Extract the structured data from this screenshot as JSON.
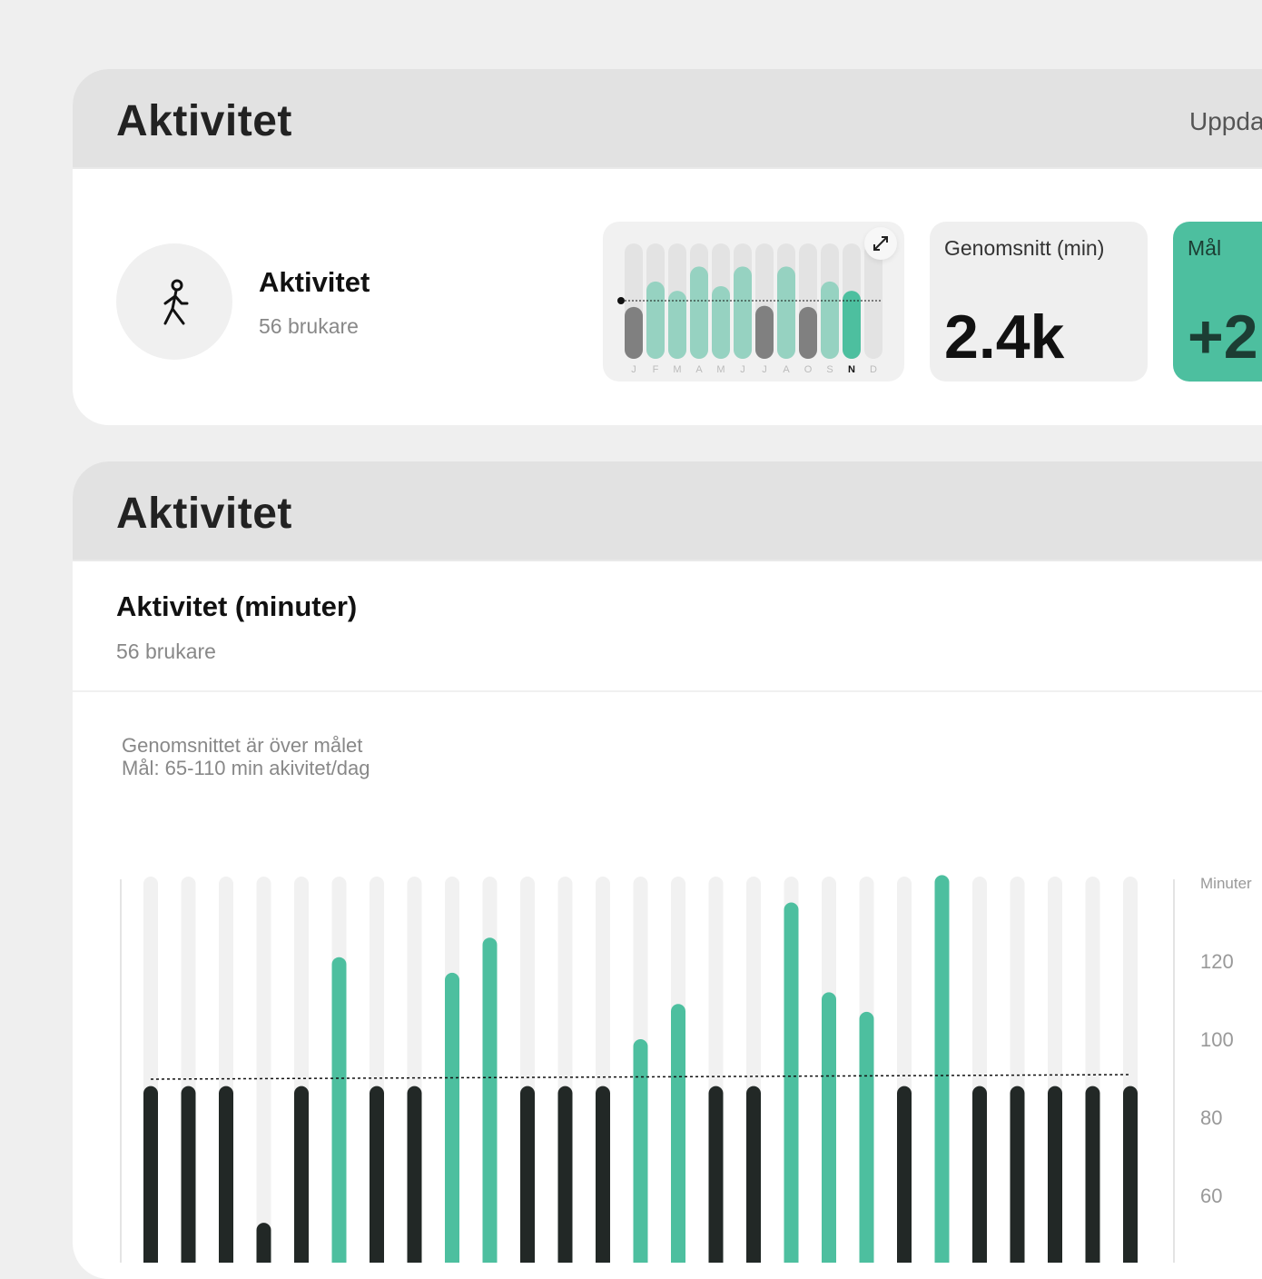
{
  "summary_card": {
    "title": "Aktivitet",
    "updated_label": "Uppda",
    "name": "Aktivitet",
    "users": "56 brukare",
    "icon": "walking-person-icon",
    "mini_chart": {
      "months": [
        "J",
        "F",
        "M",
        "A",
        "M",
        "J",
        "J",
        "A",
        "O",
        "S",
        "N",
        "D"
      ],
      "active_month": "N",
      "fill_fraction": [
        0.45,
        0.67,
        0.59,
        0.8,
        0.63,
        0.8,
        0.46,
        0.8,
        0.45,
        0.67,
        0.59,
        0
      ],
      "target_fraction": 0.5,
      "below_target": [
        true,
        false,
        false,
        false,
        false,
        false,
        true,
        false,
        true,
        false,
        false,
        false
      ],
      "expand_icon": "expand-arrows-icon"
    },
    "stats": [
      {
        "label": "Genomsnitt (min)",
        "value": "2.4k"
      },
      {
        "label": "Mål",
        "value": "+2"
      }
    ]
  },
  "detail_card": {
    "title": "Aktivitet",
    "chart_title": "Aktivitet (minuter)",
    "users": "56 brukare",
    "note_line1": "Genomsnittet är över målet",
    "note_line2": "Mål: 65-110 min akivitet/dag"
  },
  "colors": {
    "green": "#4dbf9f",
    "light_green": "#96d2c1",
    "dark": "#222826",
    "grey": "#808080"
  },
  "chart_data": {
    "type": "bar",
    "ylabel": "Minuter",
    "yticks": [
      120,
      100,
      80,
      60
    ],
    "ylim_visible": [
      50,
      142
    ],
    "target": 90,
    "values": [
      88,
      88,
      88,
      53,
      88,
      121,
      88,
      88,
      117,
      126,
      88,
      88,
      88,
      100,
      109,
      88,
      88,
      135,
      112,
      107,
      88,
      142,
      88,
      88,
      88,
      88,
      88
    ],
    "above_target": [
      false,
      false,
      false,
      false,
      false,
      true,
      false,
      false,
      true,
      true,
      false,
      false,
      false,
      true,
      true,
      false,
      false,
      true,
      true,
      true,
      false,
      true,
      false,
      false,
      false,
      false,
      false
    ]
  }
}
